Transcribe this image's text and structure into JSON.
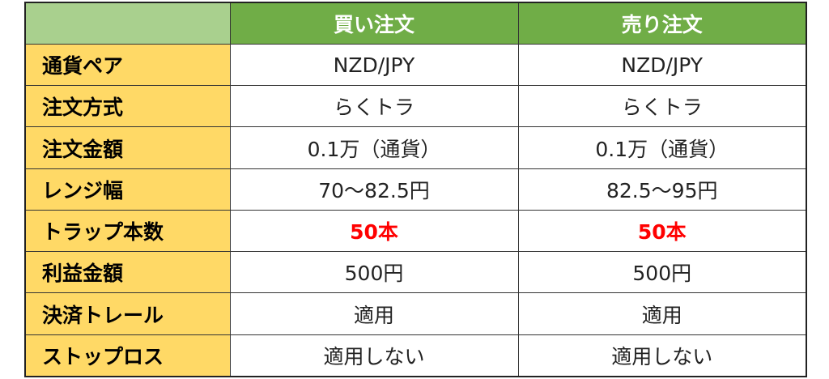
{
  "table": {
    "columns": [
      "買い注文",
      "売り注文"
    ],
    "rows": [
      {
        "label": "通貨ペア",
        "values": [
          "NZD/JPY",
          "NZD/JPY"
        ]
      },
      {
        "label": "注文方式",
        "values": [
          "らくトラ",
          "らくトラ"
        ]
      },
      {
        "label": "注文金額",
        "values": [
          "0.1万（通貨）",
          "0.1万（通貨）"
        ]
      },
      {
        "label": "レンジ幅",
        "values": [
          "70～82.5円",
          "82.5～95円"
        ]
      },
      {
        "label": "トラップ本数",
        "values": [
          "50本",
          "50本"
        ]
      },
      {
        "label": "利益金額",
        "values": [
          "500円",
          "500円"
        ]
      },
      {
        "label": "決済トレール",
        "values": [
          "適用",
          "適用"
        ]
      },
      {
        "label": "ストップロス",
        "values": [
          "適用しない",
          "適用しない"
        ]
      }
    ]
  }
}
